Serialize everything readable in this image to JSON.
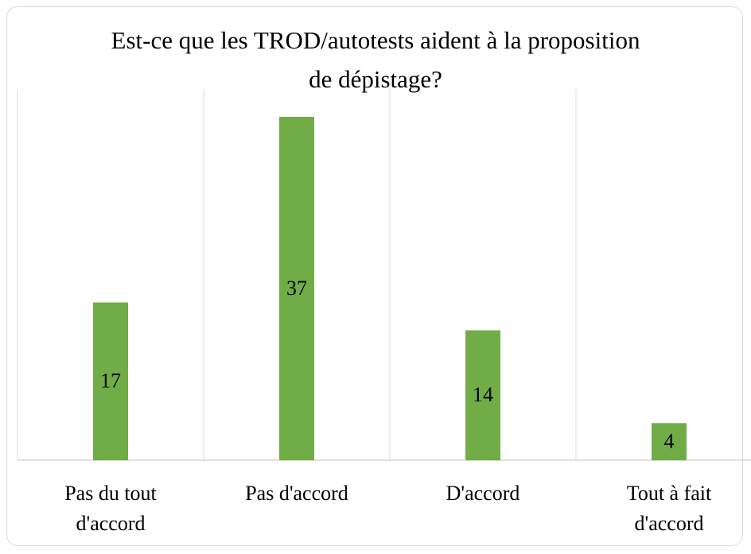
{
  "chart_data": {
    "type": "bar",
    "title": "Est-ce que les TROD/autotests aident à la proposition de dépistage?",
    "categories": [
      "Pas du tout d'accord",
      "Pas d'accord",
      "D'accord",
      "Tout à fait d'accord"
    ],
    "values": [
      17,
      37,
      14,
      4
    ],
    "color": "#70ad47",
    "ylim": [
      0,
      40
    ],
    "data_labels": true
  }
}
